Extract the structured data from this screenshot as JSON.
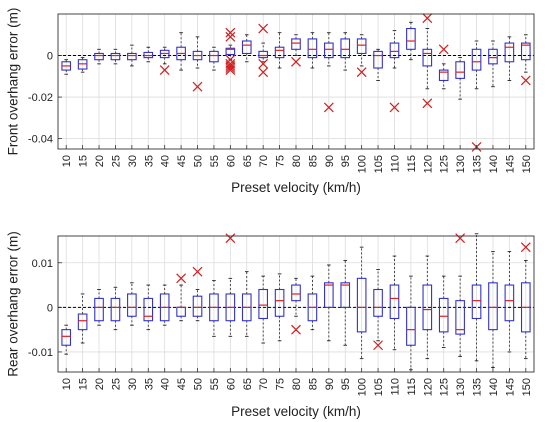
{
  "chart_data": [
    {
      "type": "box",
      "xlabel": "Preset velocity (km/h)",
      "ylabel": "Front overhang error (m)",
      "ylim": [
        -0.045,
        0.02
      ],
      "yticks": [
        0,
        -0.02,
        -0.04
      ],
      "ytick_labels": [
        "0",
        "-0.02",
        "-0.04"
      ],
      "grid": true,
      "reference_line": 0,
      "categories": [
        "10",
        "15",
        "20",
        "25",
        "30",
        "35",
        "40",
        "45",
        "50",
        "55",
        "60",
        "65",
        "70",
        "75",
        "80",
        "85",
        "90",
        "95",
        "100",
        "105",
        "110",
        "115",
        "120",
        "125",
        "130",
        "135",
        "140",
        "145",
        "150"
      ],
      "boxes": [
        {
          "min": -0.009,
          "q1": -0.007,
          "med": -0.005,
          "q3": -0.003,
          "max": -0.002,
          "outliers": []
        },
        {
          "min": -0.008,
          "q1": -0.0065,
          "med": -0.004,
          "q3": -0.002,
          "max": -0.001,
          "outliers": []
        },
        {
          "min": -0.004,
          "q1": -0.002,
          "med": 0.0,
          "q3": 0.001,
          "max": 0.003,
          "outliers": []
        },
        {
          "min": -0.004,
          "q1": -0.002,
          "med": 0.0,
          "q3": 0.001,
          "max": 0.003,
          "outliers": []
        },
        {
          "min": -0.005,
          "q1": -0.002,
          "med": 0.0,
          "q3": 0.001,
          "max": 0.005,
          "outliers": []
        },
        {
          "min": -0.003,
          "q1": -0.001,
          "med": 0.0,
          "q3": 0.0015,
          "max": 0.004,
          "outliers": []
        },
        {
          "min": -0.004,
          "q1": -0.001,
          "med": 0.001,
          "q3": 0.0025,
          "max": 0.004,
          "outliers": [
            -0.007
          ]
        },
        {
          "min": -0.007,
          "q1": -0.002,
          "med": 0.001,
          "q3": 0.004,
          "max": 0.011,
          "outliers": []
        },
        {
          "min": -0.006,
          "q1": -0.002,
          "med": 0.0,
          "q3": 0.002,
          "max": 0.009,
          "outliers": [
            -0.015
          ]
        },
        {
          "min": -0.007,
          "q1": -0.003,
          "med": 0.0,
          "q3": 0.002,
          "max": 0.004,
          "outliers": []
        },
        {
          "min": -0.002,
          "q1": 0.0005,
          "med": 0.003,
          "q3": 0.0035,
          "max": 0.005,
          "outliers": [
            0.011,
            0.009,
            -0.002,
            -0.004,
            -0.005,
            -0.006,
            -0.007
          ]
        },
        {
          "min": -0.003,
          "q1": 0.001,
          "med": 0.005,
          "q3": 0.007,
          "max": 0.01,
          "outliers": []
        },
        {
          "min": -0.003,
          "q1": -0.001,
          "med": 0.0,
          "q3": 0.002,
          "max": 0.006,
          "outliers": [
            0.013,
            -0.004,
            -0.008
          ]
        },
        {
          "min": -0.006,
          "q1": -0.001,
          "med": 0.0025,
          "q3": 0.004,
          "max": 0.011,
          "outliers": []
        },
        {
          "min": 0.0,
          "q1": 0.003,
          "med": 0.006,
          "q3": 0.008,
          "max": 0.01,
          "outliers": [
            -0.003
          ]
        },
        {
          "min": -0.006,
          "q1": -0.001,
          "med": 0.003,
          "q3": 0.008,
          "max": 0.011,
          "outliers": []
        },
        {
          "min": -0.005,
          "q1": -0.001,
          "med": 0.003,
          "q3": 0.006,
          "max": 0.011,
          "outliers": [
            -0.025
          ]
        },
        {
          "min": -0.007,
          "q1": -0.001,
          "med": 0.003,
          "q3": 0.008,
          "max": 0.011,
          "outliers": []
        },
        {
          "min": -0.005,
          "q1": 0.001,
          "med": 0.005,
          "q3": 0.008,
          "max": 0.01,
          "outliers": [
            -0.008
          ]
        },
        {
          "min": -0.012,
          "q1": -0.006,
          "med": 0.0,
          "q3": 0.002,
          "max": 0.003,
          "outliers": []
        },
        {
          "min": -0.006,
          "q1": -0.001,
          "med": 0.002,
          "q3": 0.006,
          "max": 0.012,
          "outliers": [
            -0.025
          ]
        },
        {
          "min": -0.002,
          "q1": 0.003,
          "med": 0.007,
          "q3": 0.013,
          "max": 0.016,
          "outliers": []
        },
        {
          "min": -0.016,
          "q1": -0.005,
          "med": 0.001,
          "q3": 0.003,
          "max": 0.013,
          "outliers": [
            0.018,
            -0.023
          ]
        },
        {
          "min": -0.016,
          "q1": -0.012,
          "med": -0.008,
          "q3": -0.007,
          "max": -0.004,
          "outliers": [
            0.003
          ]
        },
        {
          "min": -0.021,
          "q1": -0.011,
          "med": -0.008,
          "q3": -0.003,
          "max": -0.001,
          "outliers": []
        },
        {
          "min": -0.016,
          "q1": -0.007,
          "med": -0.003,
          "q3": 0.003,
          "max": 0.007,
          "outliers": [
            -0.044
          ]
        },
        {
          "min": -0.015,
          "q1": -0.004,
          "med": -0.001,
          "q3": 0.003,
          "max": 0.007,
          "outliers": []
        },
        {
          "min": -0.012,
          "q1": -0.003,
          "med": 0.004,
          "q3": 0.006,
          "max": 0.009,
          "outliers": []
        },
        {
          "min": -0.008,
          "q1": -0.002,
          "med": 0.005,
          "q3": 0.006,
          "max": 0.01,
          "outliers": [
            -0.012
          ]
        }
      ]
    },
    {
      "type": "box",
      "xlabel": "Preset velocity (km/h)",
      "ylabel": "Rear overhang error (m)",
      "ylim": [
        -0.0145,
        0.016
      ],
      "yticks": [
        0.01,
        0,
        -0.01
      ],
      "ytick_labels": [
        "0.01",
        "0",
        "-0.01"
      ],
      "grid": true,
      "reference_line": 0,
      "categories": [
        "10",
        "15",
        "20",
        "25",
        "30",
        "35",
        "40",
        "45",
        "50",
        "55",
        "60",
        "65",
        "70",
        "75",
        "80",
        "85",
        "90",
        "95",
        "100",
        "105",
        "110",
        "115",
        "120",
        "125",
        "130",
        "135",
        "140",
        "145",
        "150"
      ],
      "boxes": [
        {
          "min": -0.0105,
          "q1": -0.0085,
          "med": -0.0065,
          "q3": -0.005,
          "max": -0.004,
          "outliers": []
        },
        {
          "min": -0.008,
          "q1": -0.005,
          "med": -0.003,
          "q3": -0.0015,
          "max": 0.003,
          "outliers": []
        },
        {
          "min": -0.004,
          "q1": -0.003,
          "med": 0.0,
          "q3": 0.002,
          "max": 0.004,
          "outliers": []
        },
        {
          "min": -0.005,
          "q1": -0.003,
          "med": 0.0,
          "q3": 0.002,
          "max": 0.0045,
          "outliers": []
        },
        {
          "min": -0.004,
          "q1": -0.002,
          "med": 0.0,
          "q3": 0.003,
          "max": 0.0055,
          "outliers": []
        },
        {
          "min": -0.005,
          "q1": -0.003,
          "med": -0.002,
          "q3": 0.002,
          "max": 0.005,
          "outliers": []
        },
        {
          "min": -0.004,
          "q1": -0.003,
          "med": 0.0,
          "q3": 0.003,
          "max": 0.005,
          "outliers": []
        },
        {
          "min": -0.003,
          "q1": -0.002,
          "med": 0.0,
          "q3": 0.0,
          "max": 0.005,
          "outliers": [
            0.0065
          ]
        },
        {
          "min": -0.003,
          "q1": -0.002,
          "med": 0.0,
          "q3": 0.0025,
          "max": 0.004,
          "outliers": [
            0.008
          ]
        },
        {
          "min": -0.0065,
          "q1": -0.003,
          "med": 0.0,
          "q3": 0.003,
          "max": 0.006,
          "outliers": []
        },
        {
          "min": -0.0065,
          "q1": -0.003,
          "med": 0.0,
          "q3": 0.003,
          "max": 0.0065,
          "outliers": [
            0.0155
          ]
        },
        {
          "min": -0.0065,
          "q1": -0.003,
          "med": 0.0,
          "q3": 0.003,
          "max": 0.008,
          "outliers": []
        },
        {
          "min": -0.008,
          "q1": -0.0025,
          "med": 0.0005,
          "q3": 0.004,
          "max": 0.007,
          "outliers": []
        },
        {
          "min": -0.0075,
          "q1": -0.002,
          "med": 0.0015,
          "q3": 0.004,
          "max": 0.0075,
          "outliers": []
        },
        {
          "min": -0.002,
          "q1": 0.0015,
          "med": 0.003,
          "q3": 0.005,
          "max": 0.0065,
          "outliers": [
            -0.005
          ]
        },
        {
          "min": -0.005,
          "q1": -0.003,
          "med": 0.0,
          "q3": 0.003,
          "max": 0.007,
          "outliers": []
        },
        {
          "min": -0.0075,
          "q1": 0.0,
          "med": 0.005,
          "q3": 0.0055,
          "max": 0.0095,
          "outliers": []
        },
        {
          "min": -0.0085,
          "q1": 0.0,
          "med": 0.005,
          "q3": 0.0055,
          "max": 0.0105,
          "outliers": []
        },
        {
          "min": -0.0115,
          "q1": -0.0055,
          "med": 0.0,
          "q3": 0.0065,
          "max": 0.0135,
          "outliers": []
        },
        {
          "min": -0.0075,
          "q1": -0.002,
          "med": 0.0,
          "q3": 0.004,
          "max": 0.0085,
          "outliers": [
            -0.0085
          ]
        },
        {
          "min": -0.0095,
          "q1": -0.0025,
          "med": 0.002,
          "q3": 0.005,
          "max": 0.0115,
          "outliers": []
        },
        {
          "min": -0.014,
          "q1": -0.0085,
          "med": -0.005,
          "q3": 0.0,
          "max": 0.007,
          "outliers": []
        },
        {
          "min": -0.0115,
          "q1": -0.005,
          "med": -0.0005,
          "q3": 0.005,
          "max": 0.0115,
          "outliers": []
        },
        {
          "min": -0.009,
          "q1": -0.0055,
          "med": -0.002,
          "q3": 0.002,
          "max": 0.007,
          "outliers": []
        },
        {
          "min": -0.011,
          "q1": -0.006,
          "med": -0.005,
          "q3": 0.0015,
          "max": 0.007,
          "outliers": [
            0.0155
          ]
        },
        {
          "min": -0.012,
          "q1": -0.0025,
          "med": 0.0015,
          "q3": 0.005,
          "max": 0.0165,
          "outliers": []
        },
        {
          "min": -0.0135,
          "q1": -0.005,
          "med": 0.0,
          "q3": 0.0055,
          "max": 0.0125,
          "outliers": []
        },
        {
          "min": -0.01,
          "q1": -0.003,
          "med": 0.0015,
          "q3": 0.005,
          "max": 0.0125,
          "outliers": []
        },
        {
          "min": -0.0115,
          "q1": -0.0055,
          "med": 0.0,
          "q3": 0.0055,
          "max": 0.0105,
          "outliers": [
            0.0135
          ]
        }
      ]
    }
  ],
  "colors": {
    "box": "#3333cc",
    "median": "#e02020",
    "outlier": "#d02020",
    "whisker": "#222222",
    "grid": "#dcdcdc",
    "axis": "#333333"
  }
}
